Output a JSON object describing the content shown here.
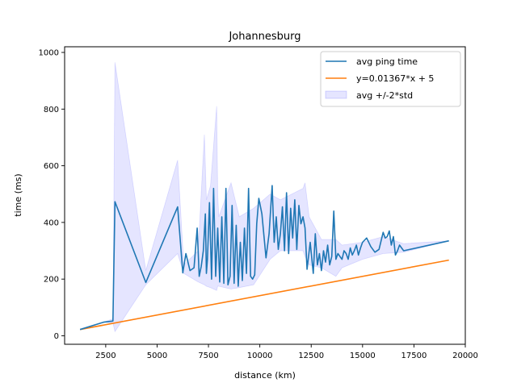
{
  "chart_data": {
    "type": "line",
    "title": "Johannesburg",
    "xlabel": "distance (km)",
    "ylabel": "time (ms)",
    "xlim": [
      500,
      20000
    ],
    "ylim": [
      -30,
      1020
    ],
    "xticks": [
      2500,
      5000,
      7500,
      10000,
      12500,
      15000,
      17500,
      20000
    ],
    "xtick_labels": [
      "2500",
      "5000",
      "7500",
      "10000",
      "12500",
      "15000",
      "17500",
      "20000"
    ],
    "yticks": [
      0,
      200,
      400,
      600,
      800,
      1000
    ],
    "ytick_labels": [
      "0",
      "200",
      "400",
      "600",
      "800",
      "1000"
    ],
    "grid": false,
    "legend": {
      "placement": "top-right",
      "entries": [
        {
          "label": "avg ping time",
          "kind": "line",
          "color": "#1f77b4"
        },
        {
          "label": "y=0.01367*x + 5",
          "kind": "line",
          "color": "#ff7f0e"
        },
        {
          "label": "avg +/-2*std",
          "kind": "patch",
          "color": "#0000ff"
        }
      ]
    },
    "series": [
      {
        "name": "avg ping time",
        "color": "#1f77b4",
        "x": [
          1250,
          2400,
          2850,
          2950,
          4450,
          6000,
          6250,
          6400,
          6600,
          6800,
          6950,
          7050,
          7150,
          7250,
          7350,
          7400,
          7450,
          7550,
          7650,
          7750,
          7850,
          7950,
          8050,
          8150,
          8250,
          8350,
          8450,
          8550,
          8650,
          8750,
          8850,
          8950,
          9050,
          9150,
          9250,
          9350,
          9450,
          9550,
          9650,
          9750,
          9850,
          9950,
          10100,
          10300,
          10450,
          10600,
          10700,
          10800,
          10900,
          11000,
          11100,
          11200,
          11300,
          11400,
          11500,
          11600,
          11700,
          11800,
          11900,
          12000,
          12100,
          12200,
          12300,
          12450,
          12600,
          12700,
          12800,
          12900,
          13000,
          13100,
          13200,
          13300,
          13400,
          13500,
          13600,
          13700,
          13800,
          13900,
          14000,
          14100,
          14200,
          14300,
          14400,
          14500,
          14600,
          14700,
          14800,
          14900,
          15000,
          15200,
          15400,
          15600,
          15800,
          16000,
          16100,
          16200,
          16300,
          16400,
          16500,
          16600,
          16700,
          16800,
          16900,
          17000,
          19200
        ],
        "y": [
          22,
          48,
          52,
          473,
          188,
          455,
          222,
          290,
          230,
          240,
          380,
          210,
          245,
          300,
          430,
          220,
          270,
          470,
          200,
          520,
          210,
          380,
          190,
          420,
          185,
          520,
          180,
          210,
          460,
          185,
          390,
          175,
          330,
          195,
          380,
          220,
          520,
          210,
          200,
          215,
          395,
          485,
          430,
          275,
          360,
          530,
          330,
          420,
          305,
          360,
          455,
          300,
          505,
          290,
          450,
          345,
          480,
          305,
          460,
          395,
          420,
          380,
          235,
          330,
          220,
          360,
          250,
          290,
          230,
          300,
          260,
          320,
          250,
          280,
          440,
          270,
          290,
          280,
          270,
          300,
          290,
          270,
          310,
          285,
          300,
          320,
          285,
          310,
          330,
          345,
          315,
          295,
          305,
          365,
          345,
          350,
          370,
          320,
          350,
          285,
          300,
          320,
          310,
          300,
          335
        ]
      },
      {
        "name": "y=0.01367*x + 5",
        "color": "#ff7f0e",
        "x": [
          1250,
          19200
        ],
        "y": [
          22,
          267
        ]
      }
    ],
    "band": {
      "name": "avg +/-2*std",
      "color": "#0000ff",
      "opacity": 0.1,
      "x": [
        1250,
        2400,
        2850,
        2950,
        4450,
        6000,
        6300,
        7000,
        7300,
        7400,
        7600,
        7900,
        7950,
        8000,
        8600,
        9000,
        9700,
        10500,
        11000,
        12100,
        12200,
        12400,
        13000,
        13700,
        14000,
        15000,
        16000,
        17000,
        19200
      ],
      "upper": [
        22,
        48,
        60,
        965,
        230,
        620,
        250,
        300,
        710,
        480,
        530,
        810,
        500,
        420,
        540,
        420,
        450,
        500,
        480,
        520,
        540,
        420,
        340,
        340,
        320,
        330,
        350,
        325,
        335
      ],
      "lower": [
        22,
        48,
        45,
        15,
        180,
        290,
        220,
        190,
        180,
        175,
        170,
        160,
        175,
        175,
        165,
        170,
        180,
        270,
        300,
        300,
        280,
        250,
        240,
        210,
        240,
        270,
        290,
        295,
        335
      ]
    }
  }
}
